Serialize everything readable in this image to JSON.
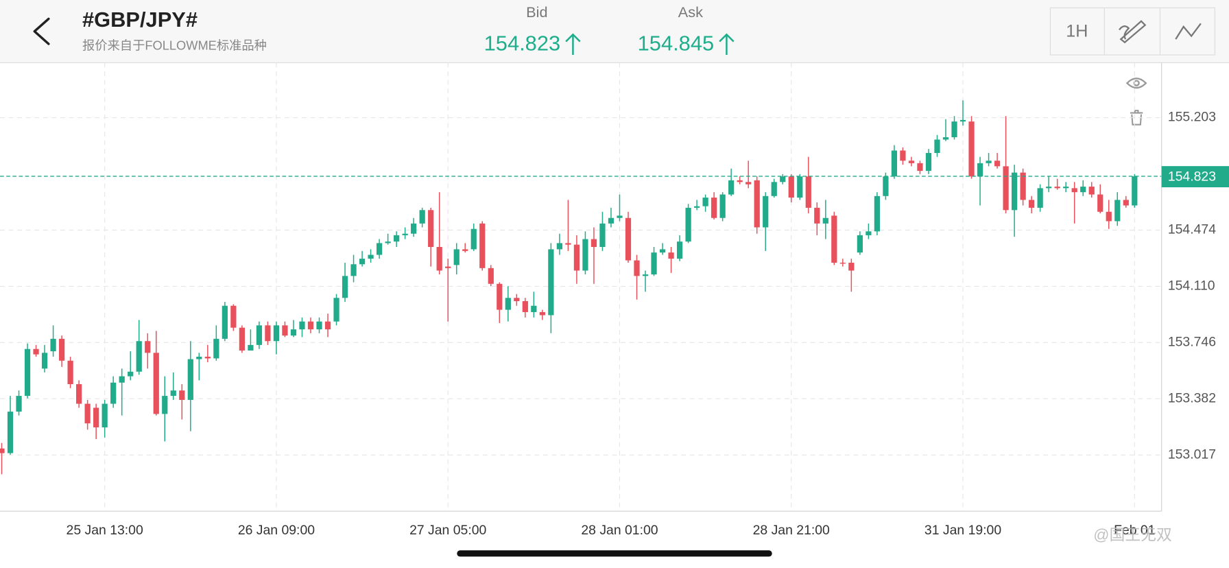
{
  "header": {
    "title": "#GBP/JPY#",
    "subtitle": "报价来自于FOLLOWME标准品种",
    "bid": {
      "label": "Bid",
      "price": "154.823"
    },
    "ask": {
      "label": "Ask",
      "price": "154.845"
    },
    "timeframe": "1H"
  },
  "watermark": "@国王无双",
  "chart_data": {
    "type": "candlestick",
    "up_color": "#22ab8a",
    "down_color": "#e8505b",
    "grid": true,
    "ylim": [
      152.653,
      155.559
    ],
    "yticks": [
      155.203,
      154.474,
      {
        "value": 154.11,
        "label": "154.110"
      },
      153.746,
      153.382,
      153.017
    ],
    "last_price": 154.823,
    "xlim": [
      -0.2,
      135.15
    ],
    "xticks": [
      {
        "value": 12,
        "label": "25 Jan 13:00"
      },
      {
        "value": 32,
        "label": "26 Jan 09:00"
      },
      {
        "value": 52,
        "label": "27 Jan 05:00"
      },
      {
        "value": 72,
        "label": "28 Jan 01:00"
      },
      {
        "value": 92,
        "label": "28 Jan 21:00"
      },
      {
        "value": 112,
        "label": "31 Jan 19:00"
      },
      {
        "value": 132,
        "label": "Feb 01"
      }
    ],
    "x": [
      0,
      1,
      2,
      3,
      4,
      5,
      6,
      7,
      8,
      9,
      10,
      11,
      12,
      13,
      14,
      15,
      16,
      17,
      18,
      19,
      20,
      21,
      22,
      23,
      24,
      25,
      26,
      27,
      28,
      29,
      30,
      31,
      32,
      33,
      34,
      35,
      36,
      37,
      38,
      39,
      40,
      41,
      42,
      43,
      44,
      45,
      46,
      47,
      48,
      49,
      50,
      51,
      52,
      53,
      54,
      55,
      56,
      57,
      58,
      59,
      60,
      61,
      62,
      63,
      64,
      65,
      66,
      67,
      68,
      69,
      70,
      71,
      72,
      73,
      74,
      75,
      76,
      77,
      78,
      79,
      80,
      81,
      82,
      83,
      84,
      85,
      86,
      87,
      88,
      89,
      90,
      91,
      92,
      93,
      94,
      95,
      96,
      97,
      98,
      99,
      100,
      101,
      102,
      103,
      104,
      105,
      106,
      107,
      108,
      109,
      110,
      111,
      112,
      113,
      114,
      115,
      116,
      117,
      118,
      119,
      120,
      121,
      122,
      123,
      124,
      125,
      126,
      127,
      128,
      129,
      130,
      131,
      132
    ],
    "open": [
      153.059,
      153.029,
      153.298,
      153.4,
      153.704,
      153.577,
      153.689,
      153.77,
      153.628,
      153.476,
      153.349,
      153.323,
      153.196,
      153.349,
      153.486,
      153.527,
      153.557,
      153.755,
      153.679,
      153.283,
      153.4,
      153.435,
      153.374,
      153.638,
      153.654,
      153.643,
      153.77,
      153.984,
      153.842,
      153.694,
      153.73,
      153.857,
      153.755,
      153.857,
      153.791,
      153.831,
      153.882,
      153.831,
      153.882,
      153.882,
      154.035,
      154.177,
      154.253,
      154.289,
      154.314,
      154.39,
      154.4,
      154.441,
      154.451,
      154.517,
      154.604,
      154.365,
      154.238,
      154.248,
      154.35,
      154.35,
      154.517,
      154.228,
      154.126,
      153.958,
      154.035,
      154.014,
      153.943,
      153.943,
      153.923,
      154.35,
      154.39,
      154.38,
      154.212,
      154.416,
      154.365,
      154.517,
      154.553,
      154.553,
      154.278,
      154.177,
      154.187,
      154.329,
      154.329,
      154.289,
      154.4,
      154.619,
      154.629,
      154.685,
      154.553,
      154.705,
      154.797,
      154.786,
      154.797,
      154.492,
      154.695,
      154.786,
      154.822,
      154.685,
      154.822,
      154.619,
      154.517,
      154.568,
      154.263,
      154.263,
      154.329,
      154.441,
      154.466,
      154.695,
      154.822,
      154.99,
      154.924,
      154.908,
      154.858,
      154.974,
      155.061,
      155.076,
      155.178,
      155.178,
      154.822,
      154.908,
      154.924,
      154.888,
      154.604,
      154.847,
      154.67,
      154.619,
      154.746,
      154.756,
      154.746,
      154.746,
      154.72,
      154.756,
      154.705,
      154.593,
      154.532,
      154.67,
      154.634
    ],
    "high": [
      153.095,
      153.4,
      153.435,
      153.74,
      153.73,
      153.73,
      153.857,
      153.791,
      153.654,
      153.501,
      153.374,
      153.349,
      153.374,
      153.527,
      153.577,
      153.689,
      153.892,
      153.806,
      153.821,
      153.527,
      153.552,
      153.476,
      153.755,
      153.679,
      153.73,
      153.857,
      154.009,
      153.994,
      153.857,
      153.831,
      153.882,
      153.882,
      153.882,
      153.882,
      153.892,
      153.908,
      153.908,
      153.908,
      153.933,
      154.06,
      154.263,
      154.314,
      154.339,
      154.35,
      154.416,
      154.451,
      154.466,
      154.492,
      154.553,
      154.619,
      154.619,
      154.72,
      154.289,
      154.39,
      154.39,
      154.517,
      154.532,
      154.248,
      154.136,
      154.111,
      154.06,
      154.035,
      154.075,
      153.958,
      154.39,
      154.451,
      154.67,
      154.441,
      154.466,
      154.492,
      154.593,
      154.619,
      154.705,
      154.593,
      154.314,
      154.212,
      154.365,
      154.39,
      154.365,
      154.441,
      154.644,
      154.67,
      154.705,
      154.72,
      154.72,
      154.873,
      154.822,
      154.924,
      154.822,
      154.72,
      154.807,
      154.837,
      154.837,
      154.837,
      154.949,
      154.654,
      154.67,
      154.593,
      154.289,
      154.289,
      154.466,
      154.517,
      154.72,
      154.847,
      155.025,
      155.01,
      154.949,
      154.924,
      155.0,
      155.091,
      155.193,
      155.213,
      155.315,
      155.213,
      154.949,
      154.974,
      154.974,
      155.213,
      154.898,
      154.873,
      154.695,
      154.771,
      154.822,
      154.807,
      154.786,
      154.786,
      154.797,
      154.786,
      154.771,
      154.67,
      154.72,
      154.695,
      154.837
    ],
    "low": [
      152.892,
      153.019,
      153.273,
      153.384,
      153.654,
      153.552,
      153.654,
      153.588,
      153.45,
      153.323,
      153.181,
      153.12,
      153.13,
      153.323,
      153.273,
      153.501,
      153.537,
      153.577,
      153.273,
      153.105,
      153.374,
      153.247,
      153.171,
      153.501,
      153.618,
      153.628,
      153.755,
      153.821,
      153.679,
      153.704,
      153.704,
      153.73,
      153.669,
      153.781,
      153.781,
      153.781,
      153.806,
      153.806,
      153.781,
      153.857,
      154.009,
      154.136,
      154.238,
      154.263,
      154.289,
      154.38,
      154.365,
      154.416,
      154.431,
      154.492,
      154.238,
      154.187,
      153.882,
      154.187,
      154.329,
      154.339,
      154.212,
      154.111,
      153.872,
      153.882,
      153.984,
      153.908,
      153.908,
      153.892,
      153.806,
      154.314,
      154.339,
      154.126,
      154.187,
      154.126,
      154.339,
      154.492,
      154.532,
      154.263,
      154.024,
      154.075,
      154.177,
      154.314,
      154.197,
      154.273,
      154.39,
      154.604,
      154.593,
      154.543,
      154.532,
      154.695,
      154.771,
      154.746,
      154.451,
      154.339,
      154.685,
      154.771,
      154.654,
      154.67,
      154.583,
      154.441,
      154.416,
      154.248,
      154.238,
      154.075,
      154.314,
      154.416,
      154.441,
      154.67,
      154.807,
      154.898,
      154.888,
      154.837,
      154.837,
      154.949,
      155.051,
      155.061,
      155.152,
      154.807,
      154.634,
      154.888,
      154.873,
      154.583,
      154.431,
      154.634,
      154.583,
      154.593,
      154.72,
      154.736,
      154.72,
      154.517,
      154.695,
      154.685,
      154.583,
      154.482,
      154.502,
      154.619,
      154.619
    ],
    "close": [
      153.029,
      153.298,
      153.4,
      153.704,
      153.669,
      153.679,
      153.77,
      153.628,
      153.476,
      153.349,
      153.222,
      153.196,
      153.349,
      153.486,
      153.527,
      153.557,
      153.755,
      153.679,
      153.283,
      153.4,
      153.435,
      153.374,
      153.638,
      153.654,
      153.643,
      153.77,
      153.984,
      153.842,
      153.694,
      153.73,
      153.857,
      153.755,
      153.857,
      153.791,
      153.831,
      153.882,
      153.831,
      153.882,
      153.831,
      154.035,
      154.177,
      154.253,
      154.289,
      154.314,
      154.39,
      154.4,
      154.441,
      154.451,
      154.517,
      154.604,
      154.365,
      154.212,
      154.228,
      154.35,
      154.339,
      154.482,
      154.228,
      154.126,
      153.958,
      154.035,
      154.014,
      153.943,
      153.984,
      153.923,
      154.35,
      154.39,
      154.38,
      154.212,
      154.416,
      154.365,
      154.517,
      154.553,
      154.568,
      154.278,
      154.177,
      154.187,
      154.329,
      154.35,
      154.289,
      154.4,
      154.619,
      154.629,
      154.685,
      154.553,
      154.705,
      154.797,
      154.786,
      154.771,
      154.492,
      154.695,
      154.786,
      154.822,
      154.685,
      154.822,
      154.619,
      154.517,
      154.553,
      154.263,
      154.258,
      154.212,
      154.441,
      154.466,
      154.695,
      154.822,
      154.99,
      154.924,
      154.908,
      154.858,
      154.974,
      155.061,
      155.076,
      155.178,
      155.188,
      154.822,
      154.908,
      154.924,
      154.888,
      154.604,
      154.847,
      154.67,
      154.619,
      154.746,
      154.756,
      154.746,
      154.756,
      154.72,
      154.756,
      154.705,
      154.593,
      154.532,
      154.67,
      154.634,
      154.823
    ]
  }
}
